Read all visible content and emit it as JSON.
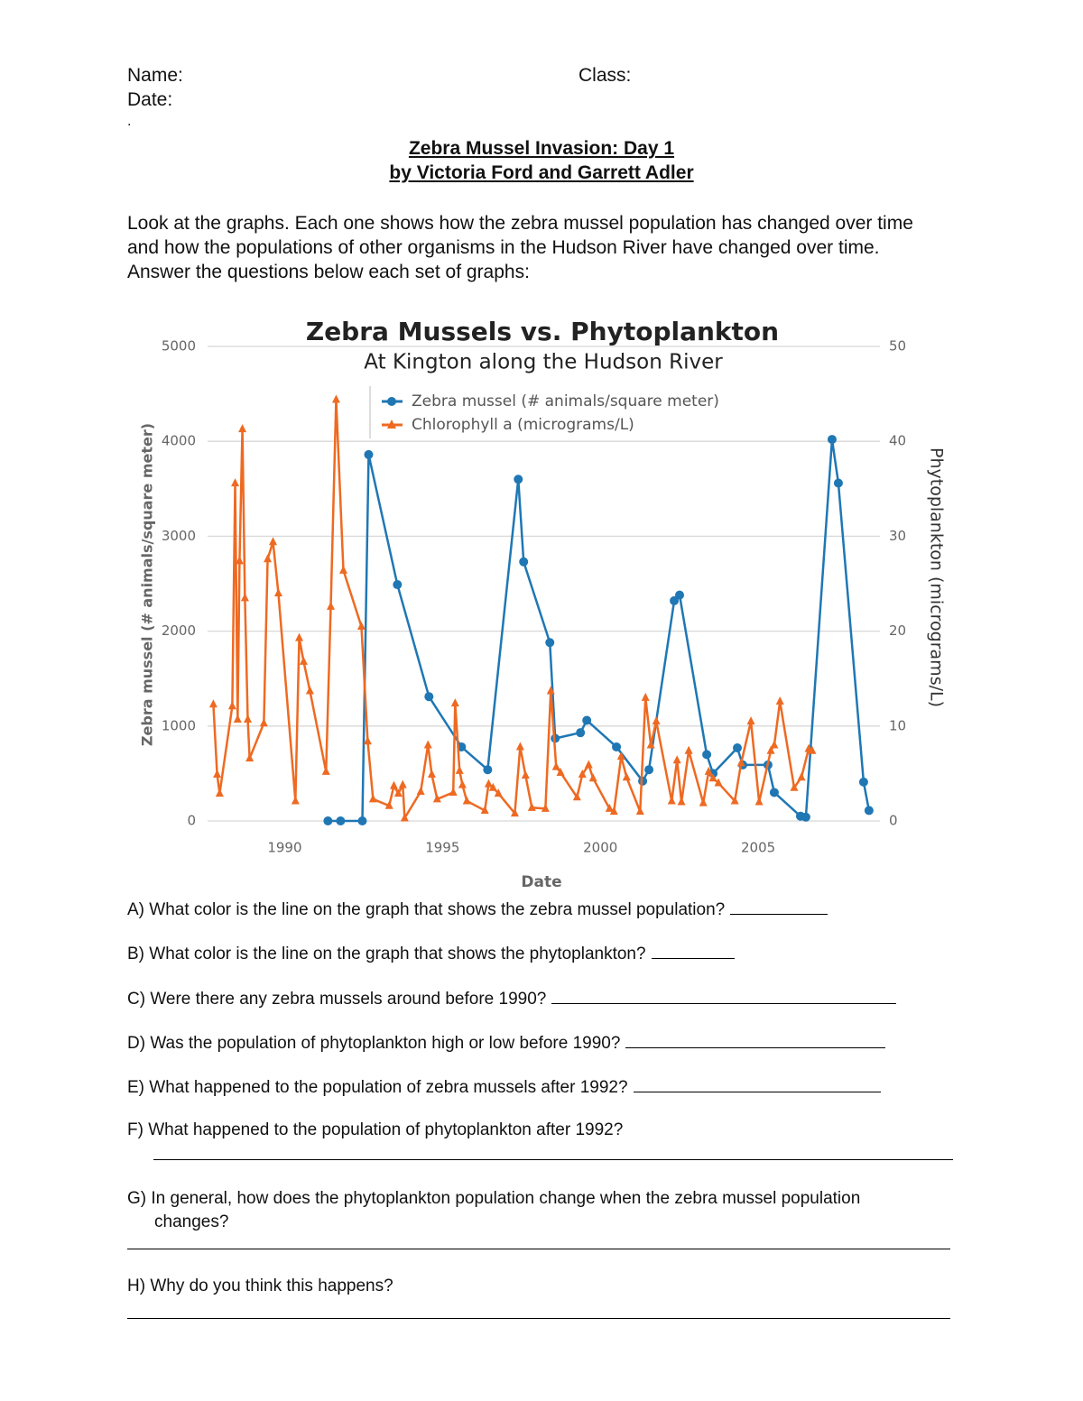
{
  "header": {
    "name": "Name:",
    "class": "Class:",
    "date": "Date:",
    "mark": "."
  },
  "title": "Zebra Mussel Invasion: Day 1",
  "byline": "by Victoria Ford and Garrett Adler",
  "intro": "Look at the graphs. Each one shows how the zebra mussel population has changed over time and how the populations of other organisms in the Hudson River have changed over time. Answer the questions below each set of graphs:",
  "chart_data": {
    "type": "line",
    "title": "Zebra Mussels vs. Phytoplankton",
    "subtitle": "At Kington along the Hudson River",
    "x_label": "Date",
    "y_label": "Zebra mussel (# animals/square meter)",
    "y2_label": "Phytoplankton (micrograms/L)",
    "xlim": [
      1987.5,
      2009
    ],
    "xticks": [
      1990,
      1995,
      2000,
      2005
    ],
    "ylim": [
      0,
      5000
    ],
    "yticks": [
      0,
      1000,
      2000,
      3000,
      4000,
      5000
    ],
    "y2lim": [
      0,
      50
    ],
    "y2ticks": [
      0,
      10,
      20,
      30,
      40,
      50
    ],
    "grid": true,
    "series": [
      {
        "name": "Zebra mussel (# animals/square meter)",
        "color": "#1f77b4",
        "marker": "circle",
        "x": [
          1991.37,
          1991.77,
          1992.46,
          1992.66,
          1993.57,
          1994.57,
          1995.6,
          1996.43,
          1997.4,
          1997.57,
          1998.4,
          1998.57,
          1999.37,
          1999.57,
          2000.51,
          2001.34,
          2001.54,
          2002.34,
          2002.51,
          2003.37,
          2003.57,
          2004.34,
          2004.51,
          2005.31,
          2005.51,
          2006.34,
          2006.51,
          2007.34,
          2007.54,
          2008.34,
          2008.51
        ],
        "values": [
          0,
          0,
          0,
          3860,
          2490,
          1310,
          780,
          540,
          3600,
          2730,
          1880,
          870,
          930,
          1060,
          780,
          420,
          540,
          2320,
          2380,
          700,
          500,
          770,
          590,
          590,
          300,
          50,
          40,
          4020,
          3560,
          410,
          110
        ]
      },
      {
        "name": "Chlorophyll a (micrograms/L)",
        "color": "#ee6a22",
        "marker": "triangle",
        "axis": "y2",
        "x": [
          1987.74,
          1987.86,
          1987.94,
          1988.34,
          1988.43,
          1988.51,
          1988.57,
          1988.66,
          1988.74,
          1988.83,
          1988.89,
          1989.34,
          1989.46,
          1989.63,
          1989.8,
          1990.34,
          1990.46,
          1990.6,
          1990.8,
          1991.31,
          1991.46,
          1991.63,
          1991.86,
          1992.43,
          1992.63,
          1992.8,
          1993.31,
          1993.46,
          1993.6,
          1993.74,
          1993.8,
          1994.31,
          1994.54,
          1994.66,
          1994.83,
          1995.34,
          1995.4,
          1995.54,
          1995.63,
          1995.77,
          1996.34,
          1996.46,
          1996.6,
          1996.77,
          1997.29,
          1997.46,
          1997.63,
          1997.83,
          1998.26,
          1998.43,
          1998.6,
          1998.74,
          1999.26,
          1999.43,
          1999.63,
          1999.77,
          2000.29,
          2000.43,
          2000.66,
          2000.83,
          2001.26,
          2001.43,
          2001.6,
          2001.77,
          2002.26,
          2002.43,
          2002.57,
          2002.8,
          2003.26,
          2003.43,
          2003.57,
          2003.74,
          2004.26,
          2004.46,
          2004.77,
          2005.03,
          2005.4,
          2005.51,
          2005.69,
          2006.14,
          2006.37,
          2006.6,
          2006.71
        ],
        "values": [
          12.3,
          4.9,
          2.9,
          12.1,
          35.6,
          10.7,
          27.4,
          41.3,
          23.5,
          10.7,
          6.6,
          10.3,
          27.6,
          29.4,
          24.0,
          2.1,
          19.3,
          16.8,
          13.7,
          5.2,
          22.6,
          44.4,
          26.4,
          20.5,
          8.4,
          2.3,
          1.6,
          3.7,
          2.9,
          3.8,
          0.3,
          3.1,
          8.0,
          4.9,
          2.3,
          3.0,
          12.4,
          5.3,
          3.8,
          2.1,
          1.1,
          3.9,
          3.5,
          2.9,
          0.8,
          7.8,
          4.8,
          1.4,
          1.3,
          13.7,
          5.7,
          5.1,
          2.5,
          4.9,
          5.9,
          4.5,
          1.3,
          1.0,
          6.8,
          4.6,
          1.0,
          13.0,
          8.0,
          10.5,
          2.1,
          6.4,
          2.0,
          7.4,
          1.9,
          5.2,
          4.5,
          4.0,
          2.1,
          6.1,
          10.5,
          2.0,
          7.4,
          8.0,
          12.6,
          3.5,
          4.6,
          7.6,
          7.4
        ]
      }
    ]
  },
  "questions": [
    "A) What color is the line on the graph that shows the zebra mussel population?",
    "B) What color is the line on the graph that shows the phytoplankton?",
    "C) Were there any zebra mussels around before 1990?",
    "D) Was the population of phytoplankton high or low before 1990?",
    "E) What happened to the population of zebra mussels after 1992?",
    "F) What happened to the population of phytoplankton after 1992?",
    "G) In general, how does the phytoplankton population change when the zebra mussel population changes?",
    "H) Why do you think this happens?"
  ]
}
